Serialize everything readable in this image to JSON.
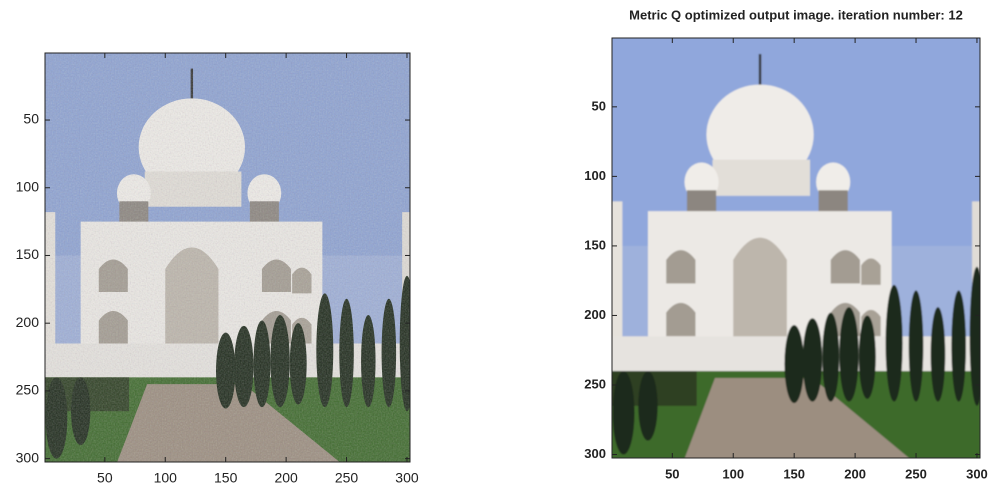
{
  "chart_data": [
    {
      "type": "image",
      "xlim": [
        0.5,
        302.5
      ],
      "ylim": [
        0.5,
        302.5
      ],
      "xticks": [
        50,
        100,
        150,
        200,
        250,
        300
      ],
      "yticks": [
        50,
        100,
        150,
        200,
        250,
        300
      ],
      "noisy": true
    },
    {
      "type": "image",
      "title": "Metric Q optimized output image. iteration number: 12",
      "xlim": [
        0.5,
        302.5
      ],
      "ylim": [
        0.5,
        302.5
      ],
      "xticks": [
        50,
        100,
        150,
        200,
        250,
        300
      ],
      "yticks": [
        50,
        100,
        150,
        200,
        250,
        300
      ],
      "noisy": false
    }
  ]
}
